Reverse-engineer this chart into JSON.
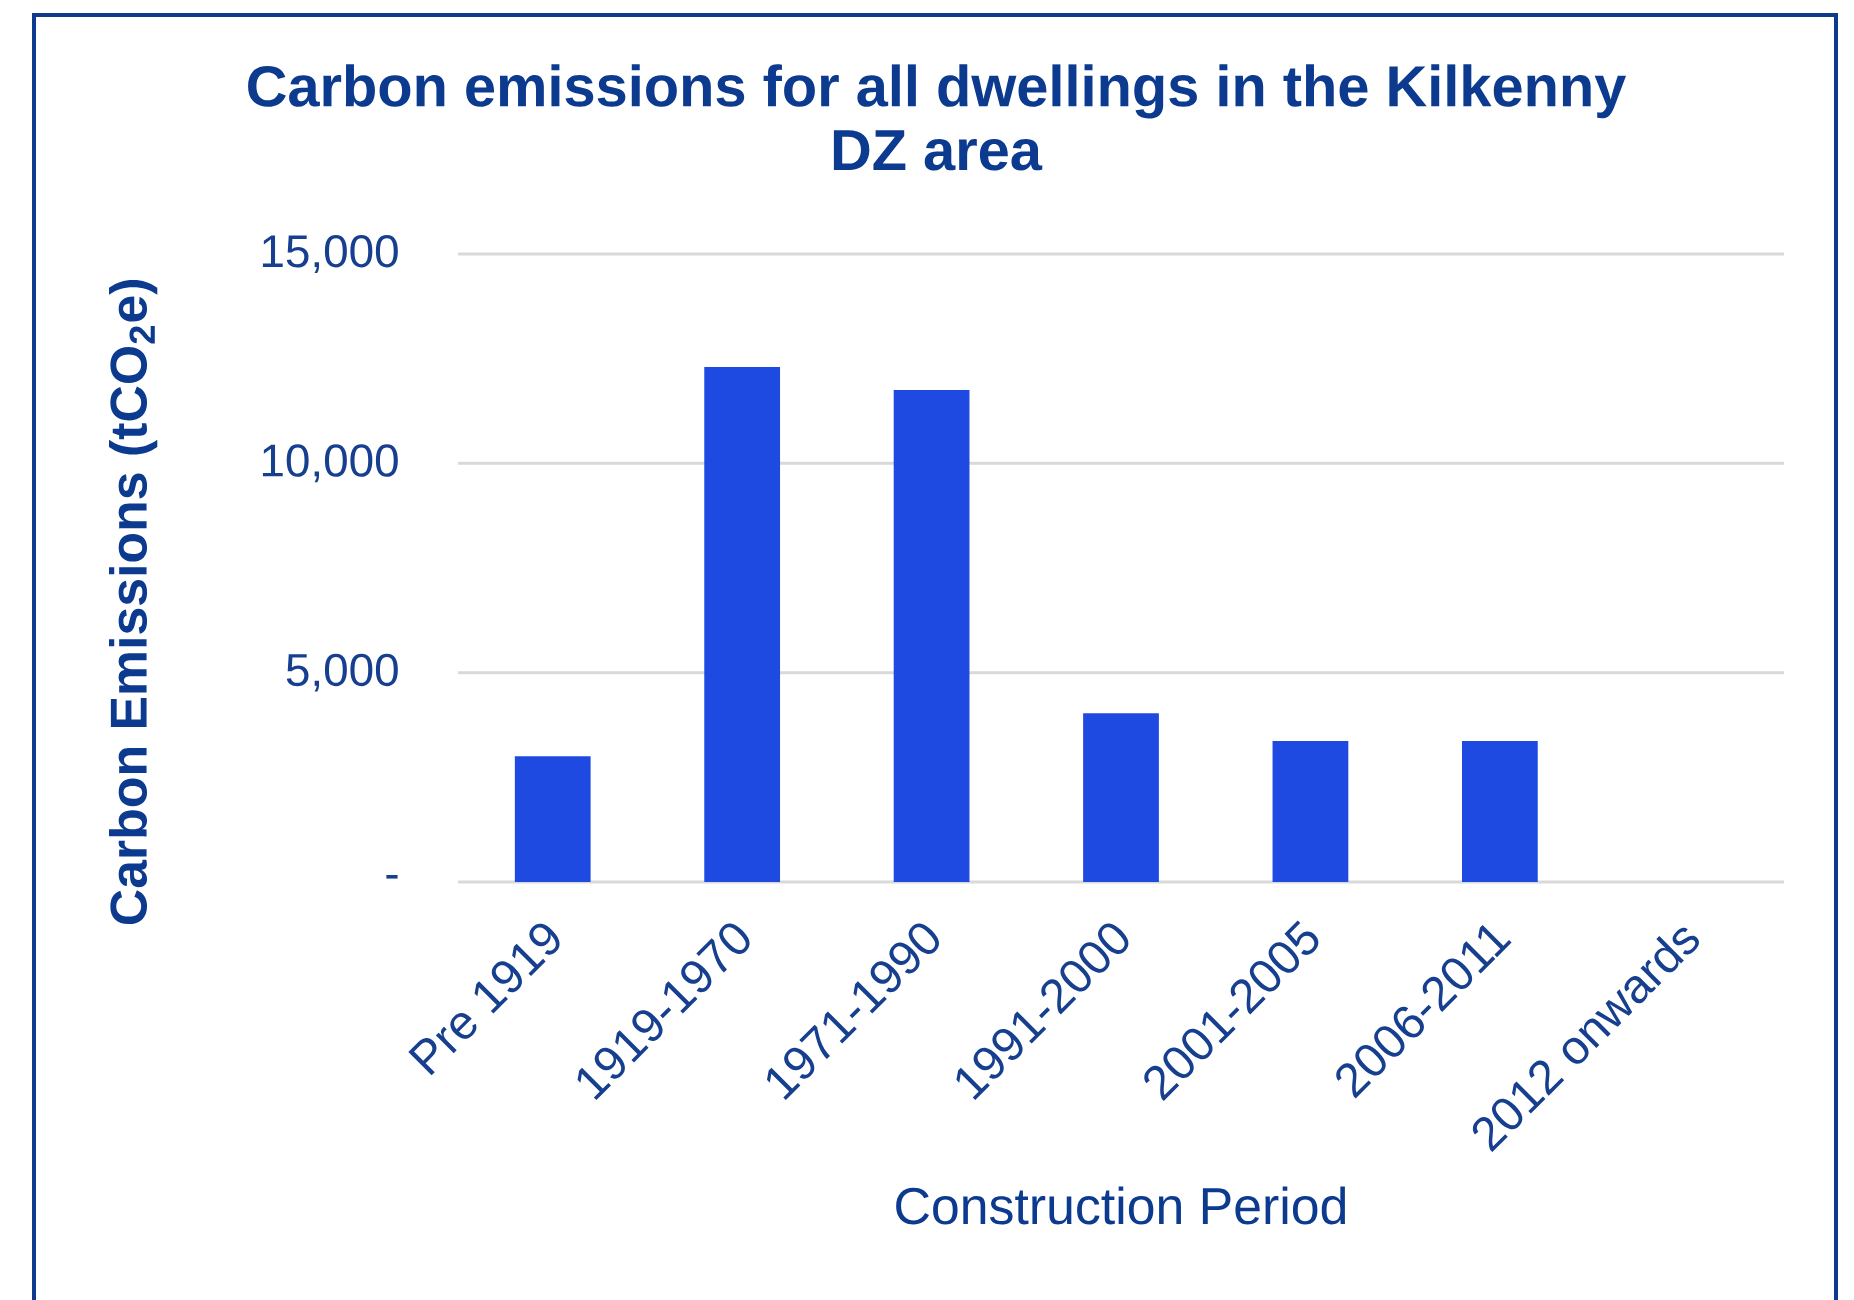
{
  "chart_data": {
    "type": "bar",
    "title": "Carbon emissions for all dwellings in the Kilkenny DZ area",
    "xlabel": "Construction Period",
    "ylabel": "Carbon Emissions (tCO$_{2}$e)",
    "categories": [
      "Pre 1919",
      "1919-1970",
      "1971-1990",
      "1991-2000",
      "2001-2005",
      "2006-2011",
      "2012 onwards"
    ],
    "values": [
      3000,
      12300,
      11750,
      4030,
      3370,
      3370,
      0
    ],
    "color": "#1f4ae2",
    "ylim": [
      0,
      15000
    ],
    "yticks": [
      {
        "value": 0,
        "label": "-"
      },
      {
        "value": 5000,
        "label": "5,000"
      },
      {
        "value": 10000,
        "label": "10,000"
      },
      {
        "value": 15000,
        "label": "15,000"
      }
    ],
    "grid": "y"
  }
}
